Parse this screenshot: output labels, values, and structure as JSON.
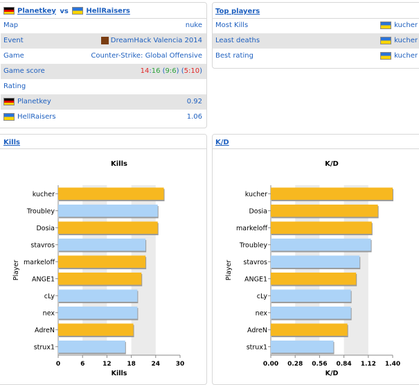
{
  "match": {
    "team1": "Planetkey",
    "vs": "vs",
    "team2": "HellRaisers",
    "rows": [
      {
        "label": "Map",
        "value": "nuke"
      },
      {
        "label": "Event",
        "value": "DreamHack Valencia 2014"
      },
      {
        "label": "Game",
        "value": "Counter-Strike: Global Offensive"
      }
    ],
    "score_label": "Game score",
    "score": {
      "t1": "14",
      "sep": ":",
      "t2": "16",
      "h1": "9:6",
      "h2": "5:10"
    },
    "rating_label": "Rating",
    "ratings": [
      {
        "team": "Planetkey",
        "value": "0.92",
        "flag": "de"
      },
      {
        "team": "HellRaisers",
        "value": "1.06",
        "flag": "ua"
      }
    ]
  },
  "top_players": {
    "title": "Top players",
    "rows": [
      {
        "label": "Most Kills",
        "player": "kucher"
      },
      {
        "label": "Least deaths",
        "player": "kucher"
      },
      {
        "label": "Best rating",
        "player": "kucher"
      }
    ]
  },
  "kills_panel": {
    "title": "Kills"
  },
  "kd_panel": {
    "title": "K/D"
  },
  "colors": {
    "hellraisers": "#f7b820",
    "planetkey": "#acd3f7",
    "plotband": "#ebebeb"
  },
  "chart_data": [
    {
      "type": "bar",
      "title": "Kills",
      "xlabel": "Kills",
      "ylabel": "Player",
      "xlim": [
        0,
        30
      ],
      "ticks": [
        "0",
        "6",
        "12",
        "18",
        "24",
        "30"
      ],
      "categories": [
        "kucher",
        "Troubley",
        "Dosia",
        "stavros",
        "markeloff",
        "ANGE1",
        "cLy",
        "nex",
        "AdreN",
        "strux1"
      ],
      "values": [
        26,
        24.5,
        24.5,
        21.5,
        21.5,
        20.5,
        19.5,
        19.5,
        18.5,
        16.5
      ],
      "team": [
        "HR",
        "PK",
        "HR",
        "PK",
        "HR",
        "HR",
        "PK",
        "PK",
        "HR",
        "PK"
      ]
    },
    {
      "type": "bar",
      "title": "K/D",
      "xlabel": "K/D",
      "ylabel": "Player",
      "xlim": [
        0,
        1.4
      ],
      "ticks": [
        "0.00",
        "0.28",
        "0.56",
        "0.84",
        "1.12",
        "1.40"
      ],
      "categories": [
        "kucher",
        "Dosia",
        "markeloff",
        "Troubley",
        "stavros",
        "ANGE1",
        "cLy",
        "nex",
        "AdreN",
        "strux1"
      ],
      "values": [
        1.4,
        1.23,
        1.16,
        1.15,
        1.02,
        0.98,
        0.92,
        0.92,
        0.88,
        0.72
      ],
      "team": [
        "HR",
        "HR",
        "HR",
        "PK",
        "PK",
        "HR",
        "PK",
        "PK",
        "HR",
        "PK"
      ]
    }
  ]
}
